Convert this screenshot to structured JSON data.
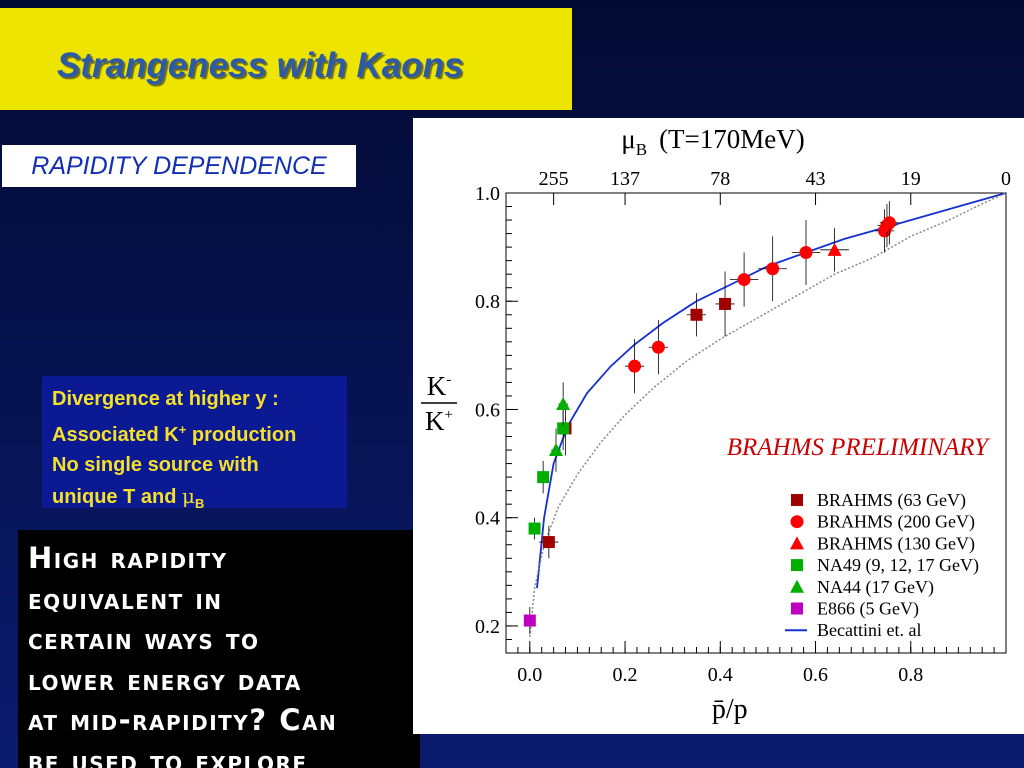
{
  "slide": {
    "title": "Strangeness with Kaons",
    "subtitle": "RAPIDITY DEPENDENCE",
    "note_lines": [
      "Divergence at higher y :",
      "Associated K",
      " production",
      "No single source with",
      "unique T and "
    ],
    "note_sup_plus": "+",
    "note_mu": "μ",
    "note_mu_sub": "B",
    "black_box_lines": [
      "High rapidity",
      "equivalent in",
      "certain ways to",
      "lower energy data",
      "at mid-rapidity? Can",
      "be used to explore"
    ]
  },
  "chart_data": {
    "type": "scatter",
    "top_axis_title": "μ",
    "top_axis_title_sub": "B",
    "top_axis_title_suffix": "(T=170MeV)",
    "top_ticks": [
      {
        "label": "255",
        "x": 0.05
      },
      {
        "label": "137",
        "x": 0.2
      },
      {
        "label": "78",
        "x": 0.4
      },
      {
        "label": "43",
        "x": 0.6
      },
      {
        "label": "19",
        "x": 0.8
      },
      {
        "label": "0",
        "x": 1.0
      }
    ],
    "xlabel": "p̄/p",
    "ylabel_num": "K",
    "ylabel_num_sup": "-",
    "ylabel_den": "K",
    "ylabel_den_sup": "+",
    "xlim": [
      -0.05,
      1.0
    ],
    "ylim": [
      0.15,
      1.0
    ],
    "x_ticks": [
      "0.0",
      "0.2",
      "0.4",
      "0.6",
      "0.8"
    ],
    "x_tick_values": [
      0.0,
      0.2,
      0.4,
      0.6,
      0.8
    ],
    "y_ticks": [
      "0.2",
      "0.4",
      "0.6",
      "0.8",
      "1.0"
    ],
    "y_tick_values": [
      0.2,
      0.4,
      0.6,
      0.8,
      1.0
    ],
    "annotation": "BRAHMS PRELIMINARY",
    "series": [
      {
        "name": "BRAHMS (63 GeV)",
        "marker": "square",
        "color": "#a00000",
        "points": [
          [
            0.04,
            0.355,
            0.02,
            0.03
          ],
          [
            0.075,
            0.565,
            0.01,
            0.05
          ],
          [
            0.35,
            0.775,
            0.02,
            0.04
          ],
          [
            0.41,
            0.795,
            0.02,
            0.06
          ]
        ]
      },
      {
        "name": "BRAHMS (200 GeV)",
        "marker": "circle",
        "color": "#ff0000",
        "points": [
          [
            0.22,
            0.68,
            0.02,
            0.05
          ],
          [
            0.27,
            0.715,
            0.02,
            0.05
          ],
          [
            0.45,
            0.84,
            0.03,
            0.05
          ],
          [
            0.51,
            0.86,
            0.03,
            0.06
          ],
          [
            0.58,
            0.89,
            0.03,
            0.06
          ],
          [
            0.745,
            0.93,
            0.02,
            0.04
          ],
          [
            0.75,
            0.94,
            0.02,
            0.04
          ],
          [
            0.755,
            0.945,
            0.02,
            0.04
          ]
        ]
      },
      {
        "name": "BRAHMS (130 GeV)",
        "marker": "triangle",
        "color": "#ff0000",
        "points": [
          [
            0.64,
            0.895,
            0.03,
            0.04
          ]
        ]
      },
      {
        "name": "NA49 (9, 12, 17 GeV)",
        "marker": "square",
        "color": "#00b000",
        "points": [
          [
            0.01,
            0.38,
            0.005,
            0.02
          ],
          [
            0.028,
            0.475,
            0.005,
            0.03
          ],
          [
            0.07,
            0.565,
            0.01,
            0.04
          ]
        ]
      },
      {
        "name": "NA44 (17 GeV)",
        "marker": "triangle",
        "color": "#00b000",
        "points": [
          [
            0.055,
            0.525,
            0.01,
            0.04
          ],
          [
            0.07,
            0.61,
            0.01,
            0.04
          ]
        ]
      },
      {
        "name": "E866 (5 GeV)",
        "marker": "square",
        "color": "#c000c0",
        "points": [
          [
            0.0,
            0.21,
            0.0,
            0.025
          ]
        ]
      }
    ],
    "legend_line_label": "Becattini et. al",
    "curves": [
      {
        "name": "Becattini et. al",
        "style": "solid",
        "color": "#1530d0",
        "x": [
          0.015,
          0.03,
          0.05,
          0.08,
          0.12,
          0.17,
          0.22,
          0.28,
          0.35,
          0.42,
          0.5,
          0.58,
          0.66,
          0.74,
          0.82,
          0.9,
          0.96,
          1.0
        ],
        "y": [
          0.27,
          0.4,
          0.5,
          0.57,
          0.63,
          0.68,
          0.72,
          0.76,
          0.8,
          0.83,
          0.865,
          0.89,
          0.915,
          0.935,
          0.955,
          0.975,
          0.99,
          1.0
        ]
      },
      {
        "name": "",
        "style": "dotted",
        "color": "#888888",
        "x": [
          0.0,
          0.01,
          0.03,
          0.06,
          0.1,
          0.15,
          0.2,
          0.26,
          0.33,
          0.4,
          0.48,
          0.56,
          0.64,
          0.72,
          0.8,
          0.88,
          0.95,
          1.0
        ],
        "y": [
          0.18,
          0.27,
          0.35,
          0.42,
          0.48,
          0.54,
          0.59,
          0.64,
          0.69,
          0.73,
          0.77,
          0.81,
          0.85,
          0.88,
          0.92,
          0.95,
          0.98,
          1.0
        ]
      }
    ]
  }
}
